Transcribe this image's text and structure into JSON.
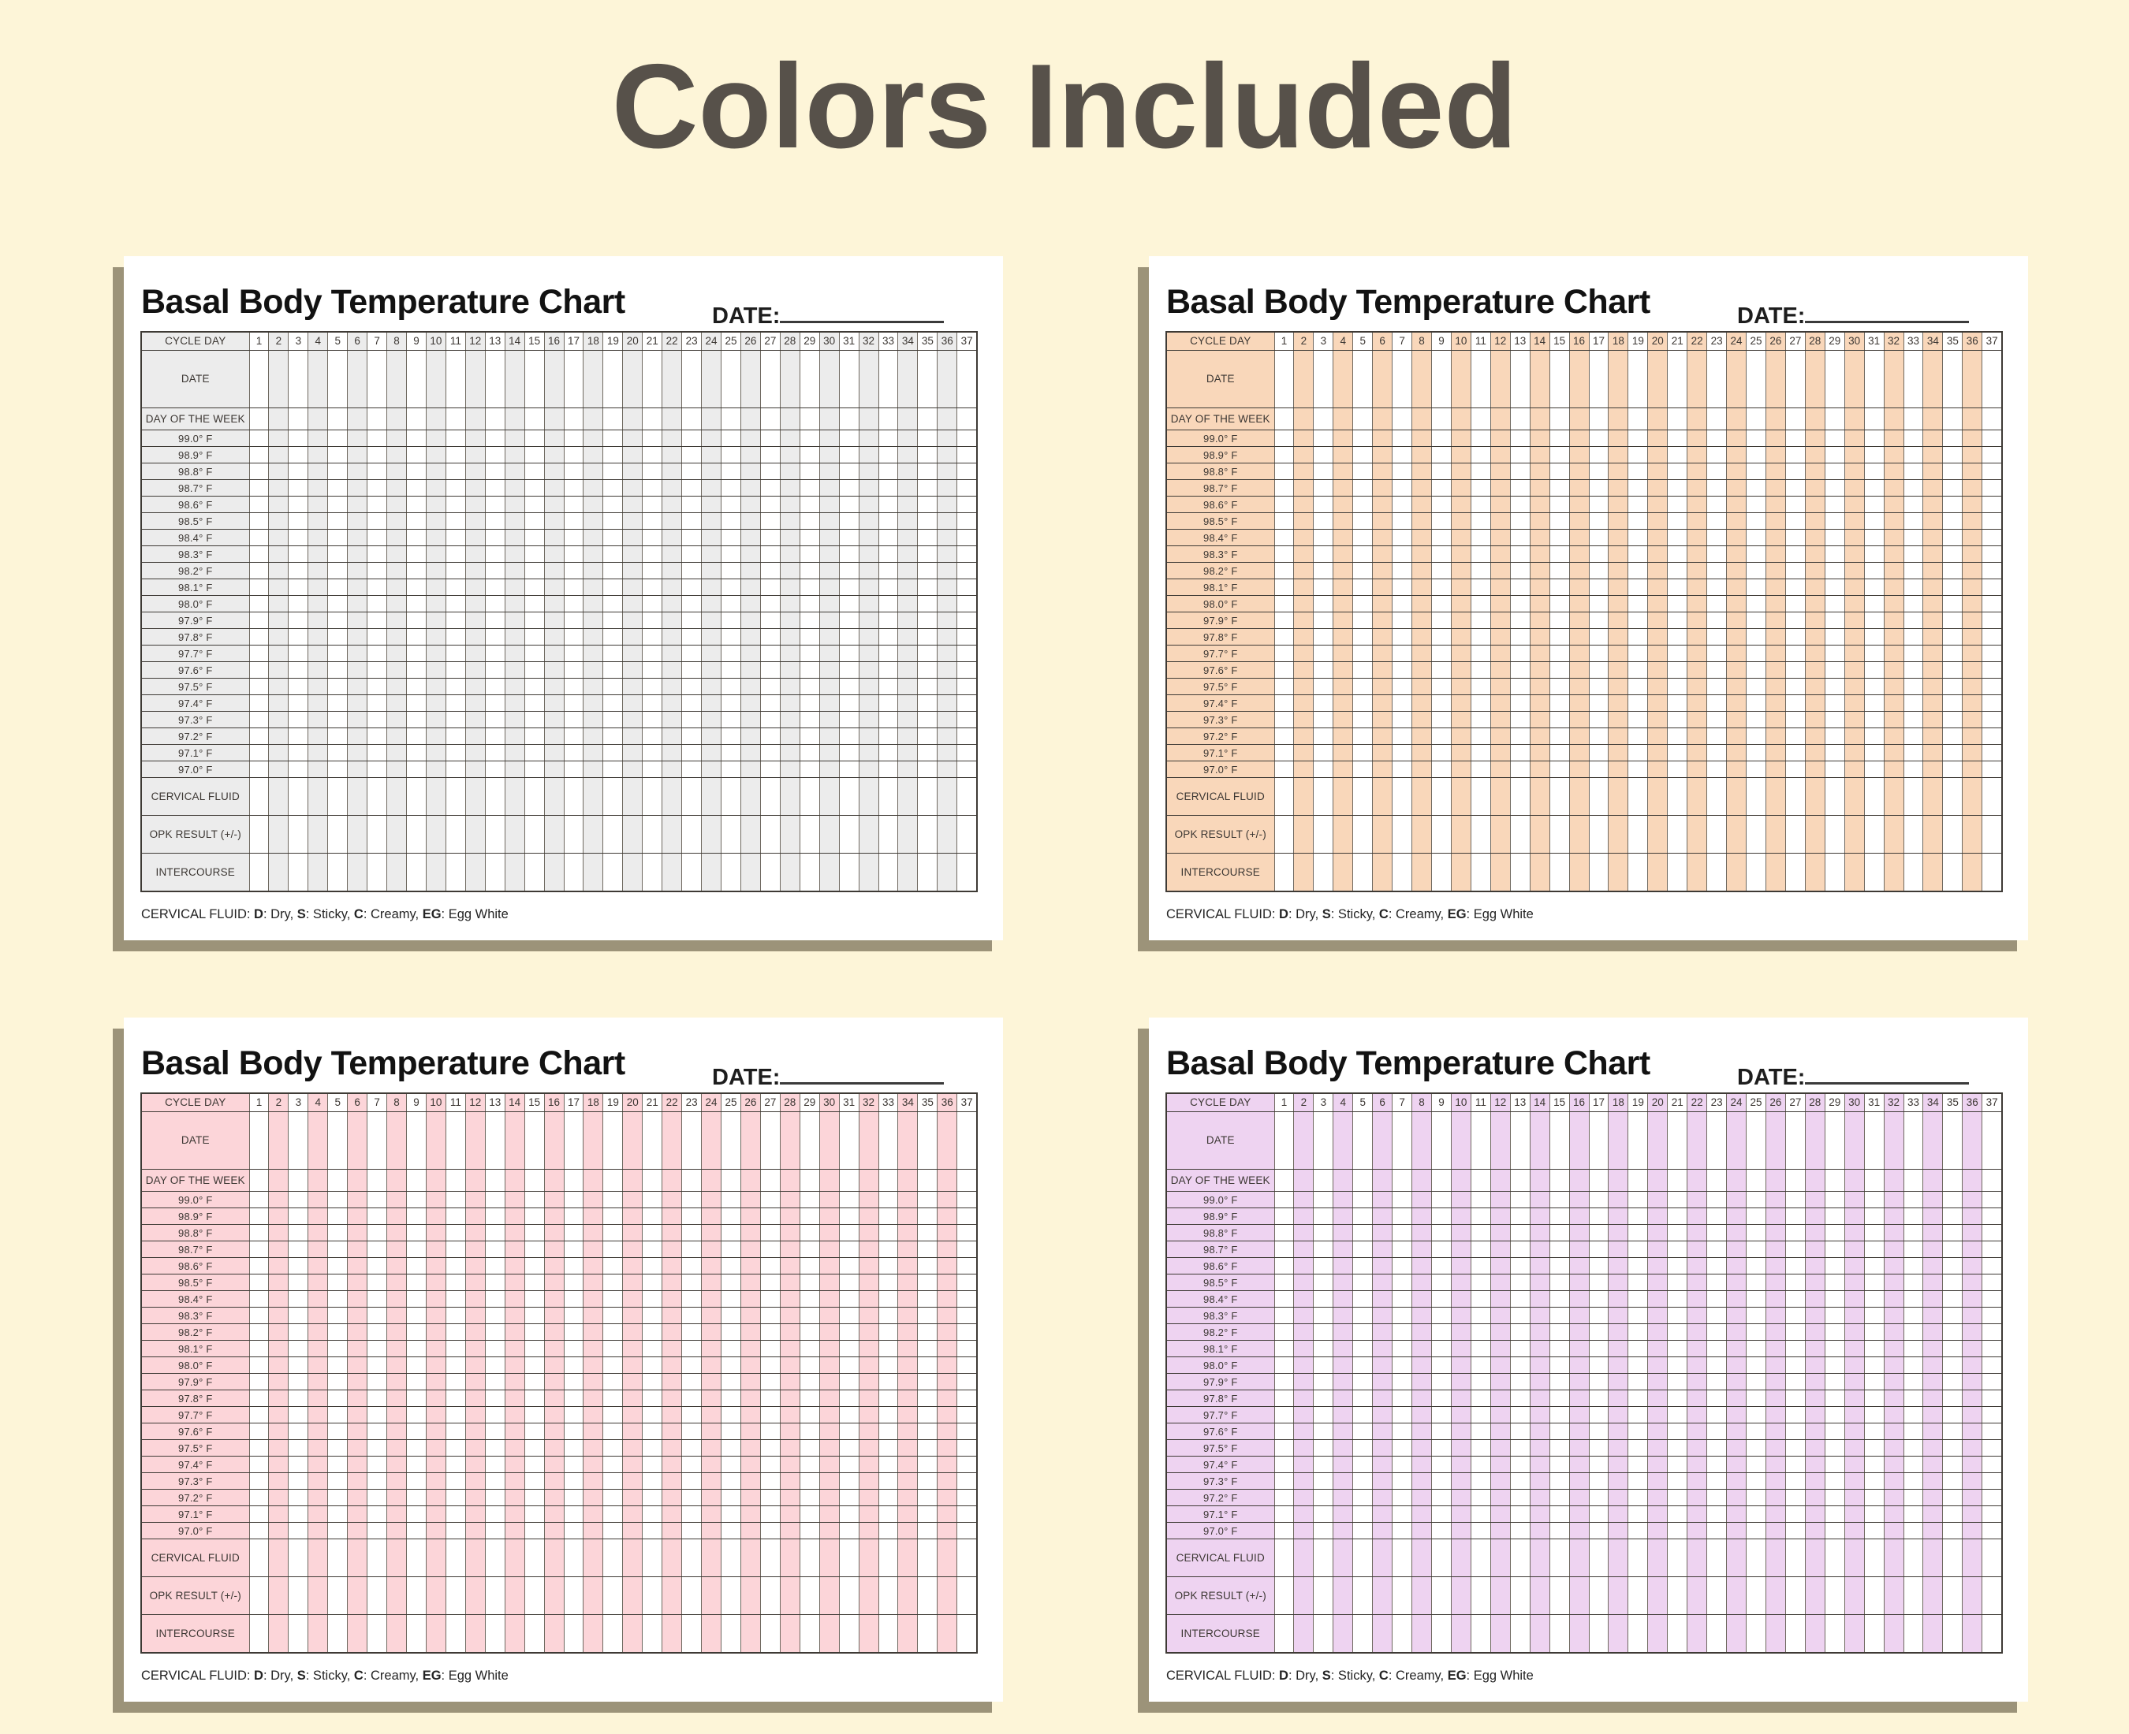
{
  "page": {
    "title": "Colors Included",
    "background_color": "#fdf5d8",
    "title_color": "#57514a",
    "card_shadow_color": "#9c9379",
    "grid_border_color": "#3e3a35"
  },
  "chart_template": {
    "title": "Basal Body Temperature Chart",
    "date_label": "DATE:",
    "header_label": "CYCLE DAY",
    "day_numbers": [
      "1",
      "2",
      "3",
      "4",
      "5",
      "6",
      "7",
      "8",
      "9",
      "10",
      "11",
      "12",
      "13",
      "14",
      "15",
      "16",
      "17",
      "18",
      "19",
      "20",
      "21",
      "22",
      "23",
      "24",
      "25",
      "26",
      "27",
      "28",
      "29",
      "30",
      "31",
      "32",
      "33",
      "34",
      "35",
      "36",
      "37"
    ],
    "rows": [
      {
        "label": "DATE",
        "type": "date"
      },
      {
        "label": "DAY OF THE WEEK",
        "type": "dow"
      },
      {
        "label": "99.0° F",
        "type": "temp"
      },
      {
        "label": "98.9° F",
        "type": "temp"
      },
      {
        "label": "98.8° F",
        "type": "temp"
      },
      {
        "label": "98.7° F",
        "type": "temp"
      },
      {
        "label": "98.6° F",
        "type": "temp"
      },
      {
        "label": "98.5° F",
        "type": "temp"
      },
      {
        "label": "98.4° F",
        "type": "temp"
      },
      {
        "label": "98.3° F",
        "type": "temp"
      },
      {
        "label": "98.2° F",
        "type": "temp"
      },
      {
        "label": "98.1° F",
        "type": "temp"
      },
      {
        "label": "98.0° F",
        "type": "temp"
      },
      {
        "label": "97.9° F",
        "type": "temp"
      },
      {
        "label": "97.8° F",
        "type": "temp"
      },
      {
        "label": "97.7° F",
        "type": "temp"
      },
      {
        "label": "97.6° F",
        "type": "temp"
      },
      {
        "label": "97.5° F",
        "type": "temp"
      },
      {
        "label": "97.4° F",
        "type": "temp"
      },
      {
        "label": "97.3° F",
        "type": "temp"
      },
      {
        "label": "97.2° F",
        "type": "temp"
      },
      {
        "label": "97.1° F",
        "type": "temp"
      },
      {
        "label": "97.0° F",
        "type": "temp"
      },
      {
        "label": "CERVICAL FLUID",
        "type": "track"
      },
      {
        "label": "OPK RESULT (+/-)",
        "type": "track"
      },
      {
        "label": "INTERCOURSE",
        "type": "track"
      }
    ],
    "footnote": [
      {
        "text": "CERVICAL FLUID: ",
        "bold": false
      },
      {
        "text": "D",
        "bold": true
      },
      {
        "text": ": Dry, ",
        "bold": false
      },
      {
        "text": "S",
        "bold": true
      },
      {
        "text": ": Sticky, ",
        "bold": false
      },
      {
        "text": "C",
        "bold": true
      },
      {
        "text": ": Creamy, ",
        "bold": false
      },
      {
        "text": "EG",
        "bold": true
      },
      {
        "text": ": Egg White",
        "bold": false
      }
    ]
  },
  "charts": [
    {
      "name": "gray",
      "accent": "#ececec"
    },
    {
      "name": "peach",
      "accent": "#f9d7ba"
    },
    {
      "name": "pink",
      "accent": "#fcd5d9"
    },
    {
      "name": "purple",
      "accent": "#eed3f1"
    }
  ]
}
